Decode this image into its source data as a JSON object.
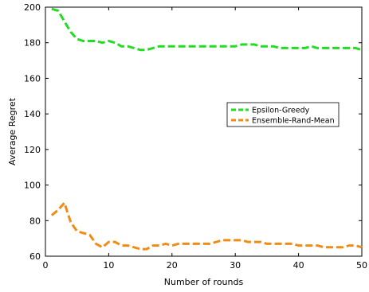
{
  "chart_data": {
    "type": "line",
    "xlabel": "Number of rounds",
    "ylabel": "Average Regret",
    "xlim": [
      0,
      50
    ],
    "ylim": [
      60,
      200
    ],
    "xticks": [
      0,
      10,
      20,
      30,
      40,
      50
    ],
    "yticks": [
      60,
      80,
      100,
      120,
      140,
      160,
      180,
      200
    ],
    "grid": false,
    "legend_position": "right",
    "series": [
      {
        "name": "Epsilon-Greedy",
        "color": "#22dd22",
        "line_style": "dashed",
        "x": [
          1,
          2,
          3,
          4,
          5,
          6,
          7,
          8,
          9,
          10,
          11,
          12,
          13,
          14,
          15,
          16,
          17,
          18,
          19,
          20,
          21,
          22,
          23,
          24,
          25,
          26,
          27,
          28,
          29,
          30,
          31,
          32,
          33,
          34,
          35,
          36,
          37,
          38,
          39,
          40,
          41,
          42,
          43,
          44,
          45,
          46,
          47,
          48,
          49,
          50
        ],
        "y": [
          199,
          198,
          192,
          186,
          182,
          181,
          181,
          181,
          180,
          181,
          180,
          178,
          178,
          177,
          176,
          176,
          177,
          178,
          178,
          178,
          178,
          178,
          178,
          178,
          178,
          178,
          178,
          178,
          178,
          178,
          179,
          179,
          179,
          178,
          178,
          178,
          177,
          177,
          177,
          177,
          177,
          178,
          177,
          177,
          177,
          177,
          177,
          177,
          177,
          176
        ]
      },
      {
        "name": "Ensemble-Rand-Mean",
        "color": "#f08c14",
        "line_style": "dashed",
        "x": [
          1,
          2,
          3,
          4,
          5,
          6,
          7,
          8,
          9,
          10,
          11,
          12,
          13,
          14,
          15,
          16,
          17,
          18,
          19,
          20,
          21,
          22,
          23,
          24,
          25,
          26,
          27,
          28,
          29,
          30,
          31,
          32,
          33,
          34,
          35,
          36,
          37,
          38,
          39,
          40,
          41,
          42,
          43,
          44,
          45,
          46,
          47,
          48,
          49,
          50
        ],
        "y": [
          83,
          86,
          90,
          79,
          74,
          73,
          72,
          67,
          65,
          68,
          68,
          66,
          66,
          65,
          64,
          64,
          66,
          66,
          67,
          66,
          67,
          67,
          67,
          67,
          67,
          67,
          68,
          69,
          69,
          69,
          69,
          68,
          68,
          68,
          67,
          67,
          67,
          67,
          67,
          66,
          66,
          66,
          66,
          65,
          65,
          65,
          65,
          66,
          66,
          65
        ]
      }
    ]
  }
}
